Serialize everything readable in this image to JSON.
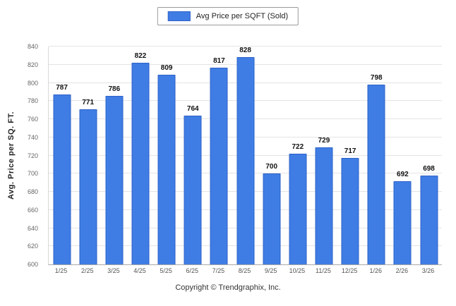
{
  "legend": {
    "label": "Avg Price per SQFT (Sold)",
    "swatch_color": "#3f7de4"
  },
  "chart_data": {
    "type": "bar",
    "title": "",
    "categories": [
      "1/25",
      "2/25",
      "3/25",
      "4/25",
      "5/25",
      "6/25",
      "7/25",
      "8/25",
      "9/25",
      "10/25",
      "11/25",
      "12/25",
      "1/26",
      "2/26",
      "3/26"
    ],
    "values": [
      787,
      771,
      786,
      822,
      809,
      764,
      817,
      828,
      700,
      722,
      729,
      717,
      798,
      692,
      698
    ],
    "xlabel": "",
    "ylabel": "Avg. Price per SQ. FT.",
    "ylim": [
      600,
      840
    ],
    "ytick_step": 20,
    "grid": true,
    "legend_position": "top",
    "bar_color": "#3f7de4"
  },
  "footer": {
    "copyright": "Copyright © Trendgraphix, Inc."
  }
}
